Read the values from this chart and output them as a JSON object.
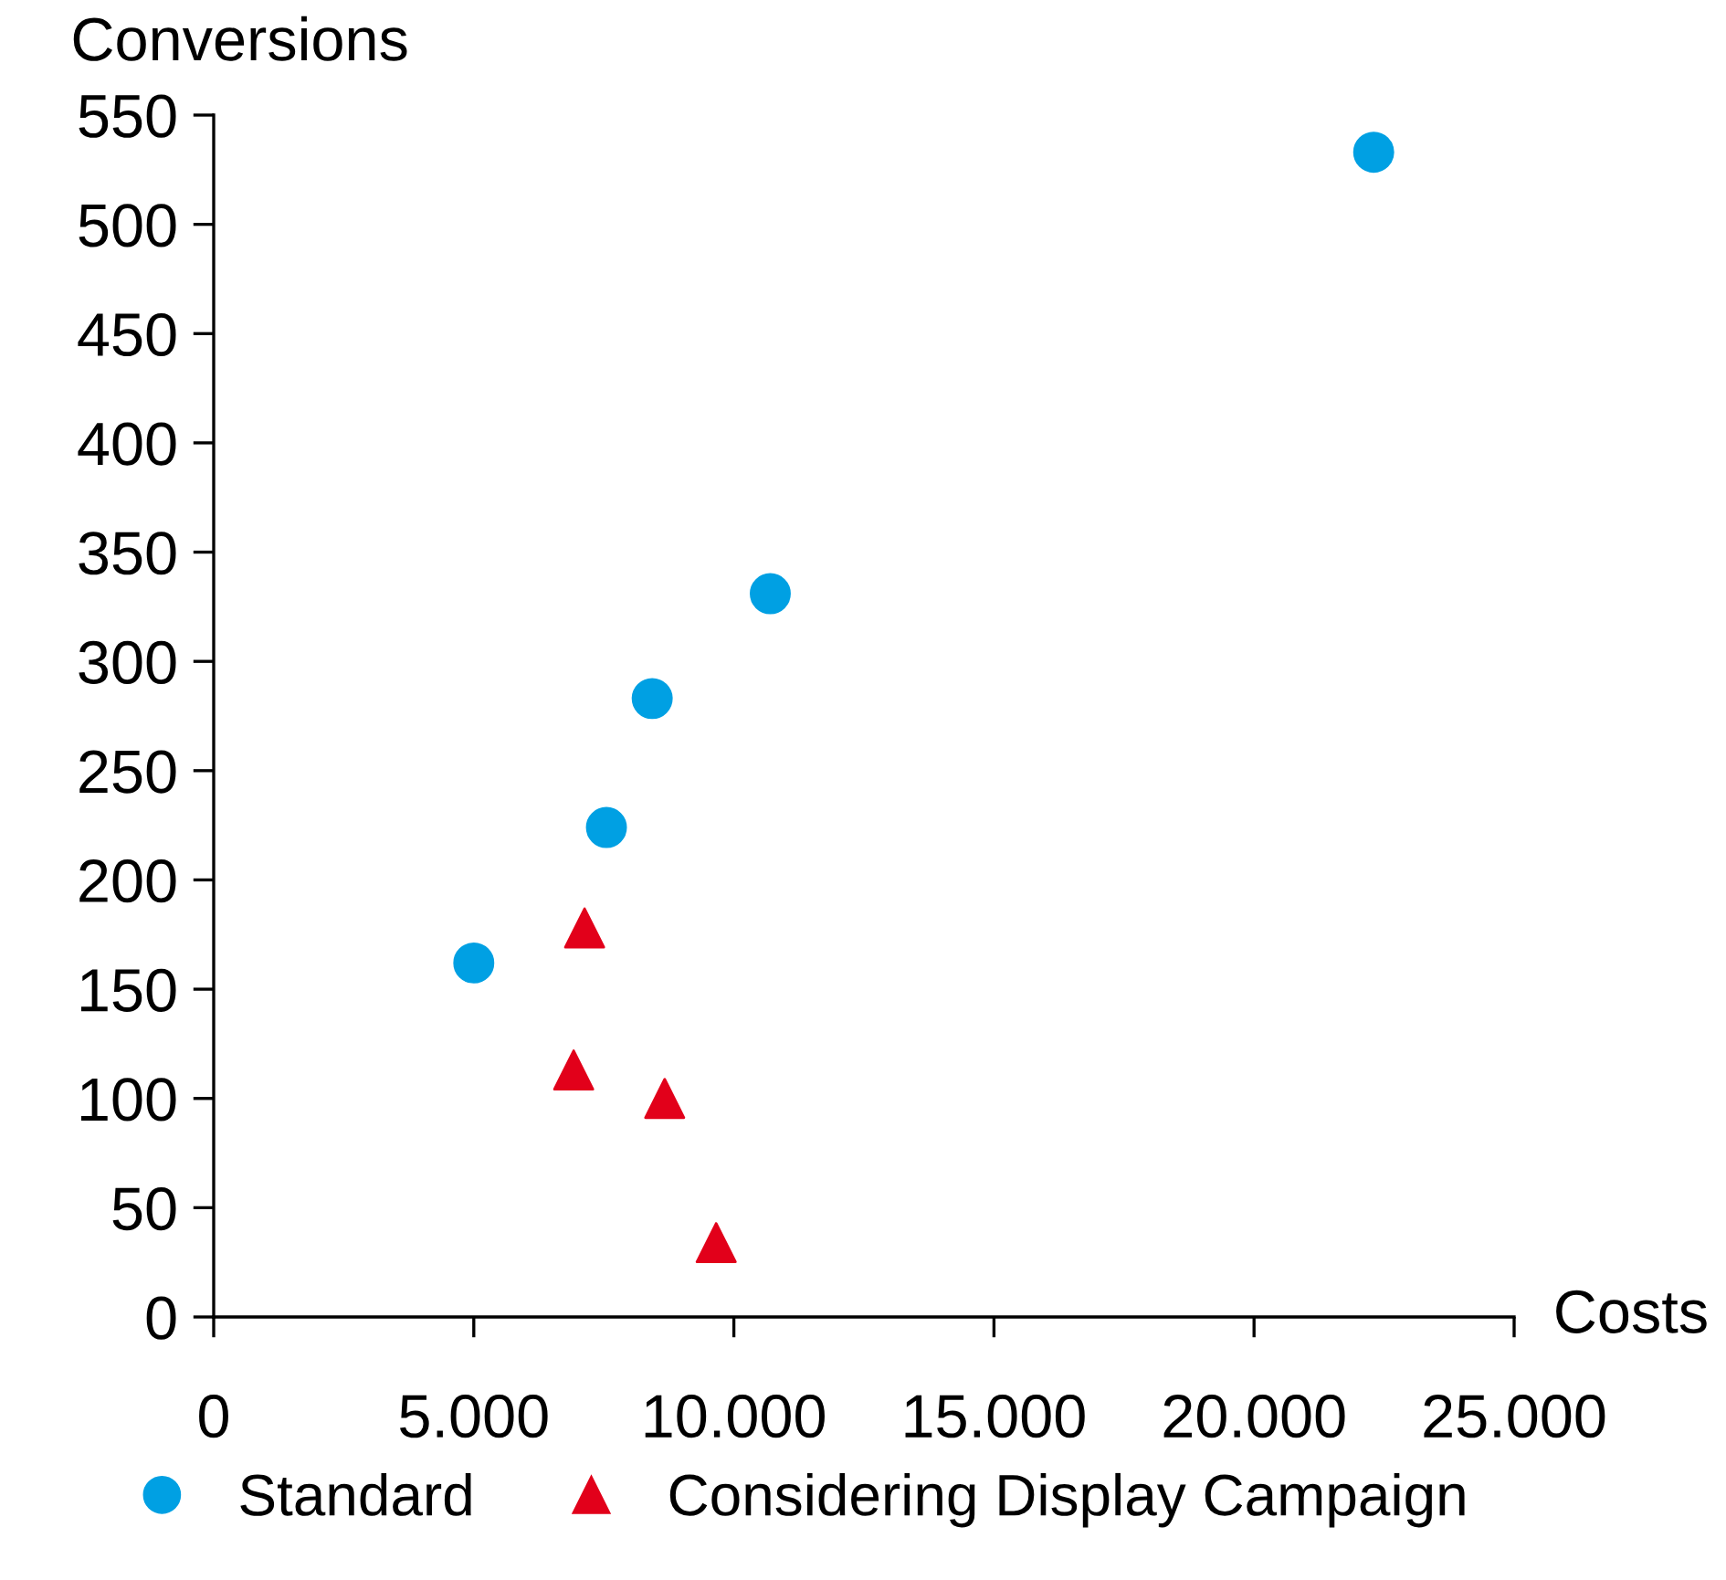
{
  "chart_data": {
    "type": "scatter",
    "xlabel": "Costs",
    "ylabel": "Conversions",
    "xlim": [
      0,
      25000
    ],
    "ylim": [
      0,
      550
    ],
    "xticks": [
      0,
      {
        "value": 5000,
        "label": "5.000"
      },
      {
        "value": 10000,
        "label": "10.000"
      },
      {
        "value": 15000,
        "label": "15.000"
      },
      {
        "value": 20000,
        "label": "20.000"
      },
      {
        "value": 25000,
        "label": "25.000"
      }
    ],
    "yticks": [
      0,
      50,
      100,
      150,
      200,
      250,
      300,
      350,
      400,
      450,
      500,
      550
    ],
    "grid": false,
    "legend": "bottom",
    "series": [
      {
        "name": "Standard",
        "color": "#00a0e3",
        "marker": "circle",
        "x": [
          5000,
          7550,
          8430,
          10700,
          22300
        ],
        "values": [
          162,
          224,
          283,
          331,
          533
        ]
      },
      {
        "name": "Considering Display Campaign",
        "color": "#e2001a",
        "marker": "triangle",
        "x": [
          7130,
          6920,
          8670,
          9660
        ],
        "values": [
          178,
          113,
          100,
          34
        ]
      }
    ]
  }
}
